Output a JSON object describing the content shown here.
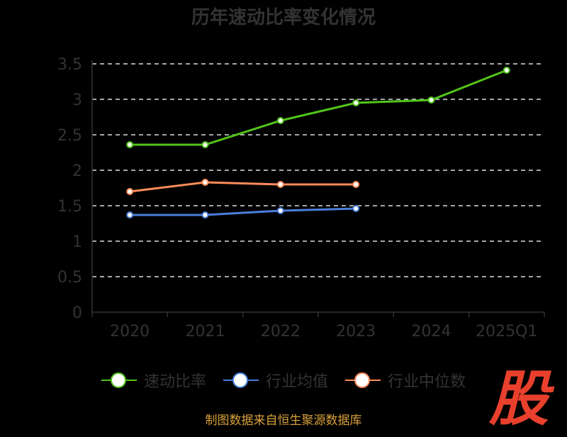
{
  "chart_data": {
    "type": "line",
    "title": "历年速动比率变化情况",
    "categories": [
      "2020",
      "2021",
      "2022",
      "2023",
      "2024",
      "2025Q1"
    ],
    "yticks": [
      "0",
      "0.5",
      "1",
      "1.5",
      "2",
      "2.5",
      "3",
      "3.5"
    ],
    "ylim": [
      0,
      3.5
    ],
    "grid": true,
    "legend_position": "bottom",
    "series": [
      {
        "name": "速动比率",
        "color": "#52c41a",
        "values": [
          2.36,
          2.36,
          2.7,
          2.95,
          2.99,
          3.41
        ]
      },
      {
        "name": "行业均值",
        "color": "#4a7fdc",
        "values": [
          1.37,
          1.37,
          1.43,
          1.46,
          null,
          null
        ]
      },
      {
        "name": "行业中位数",
        "color": "#ff8c5a",
        "values": [
          1.7,
          1.83,
          1.8,
          1.8,
          null,
          null
        ]
      }
    ]
  },
  "footer": "制图数据来自恒生聚源数据库",
  "logo": "股"
}
